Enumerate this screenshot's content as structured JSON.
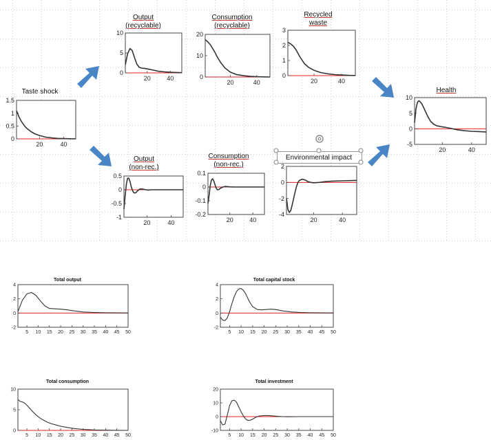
{
  "colors": {
    "line": "#333333",
    "zero": "#e02020",
    "arrow": "#4a86c5",
    "grid": "#cfcfcf"
  },
  "icons": [
    "arrow-icon",
    "rotate-handle-icon",
    "resize-handle-icon"
  ],
  "diagram": {
    "taste_shock": {
      "title": "Taste shock"
    },
    "output_rec": {
      "title1": "Output",
      "title2": "(recyclable)"
    },
    "consumption_rec": {
      "title1": "Consumption",
      "title2": "(recyclable)"
    },
    "recycled_waste": {
      "title1": "Recycled",
      "title2": "waste"
    },
    "health": {
      "title": "Health"
    },
    "output_nonrec": {
      "title1": "Output",
      "title2": "(non-rec.)"
    },
    "consumption_nonrec": {
      "title1": "Consumption",
      "title2": "(non-rec.)"
    },
    "env_impact": {
      "title": "Environmental impact"
    }
  },
  "chart_data": [
    {
      "id": "taste_shock",
      "type": "line",
      "title": "Taste shock",
      "xlim": [
        1,
        50
      ],
      "ylim": [
        0,
        1.5
      ],
      "xticks": [
        20,
        40
      ],
      "yticks": [
        0,
        0.5,
        1,
        1.5
      ],
      "ytick_labels": [
        "0",
        "0.5",
        "1",
        "1.5"
      ],
      "x": [
        1,
        3,
        5,
        8,
        10,
        13,
        16,
        20,
        25,
        30,
        35,
        40,
        45,
        50
      ],
      "y": [
        1.1,
        0.86,
        0.68,
        0.48,
        0.39,
        0.28,
        0.2,
        0.13,
        0.07,
        0.04,
        0.02,
        0.01,
        0.005,
        0.0
      ]
    },
    {
      "id": "output_rec",
      "type": "line",
      "title": "Output (recyclable)",
      "xlim": [
        1,
        50
      ],
      "ylim": [
        0,
        10
      ],
      "xticks": [
        20,
        40
      ],
      "yticks": [
        0,
        5,
        10
      ],
      "ytick_labels": [
        "0",
        "5",
        "10"
      ],
      "x": [
        1,
        3,
        5,
        7,
        9,
        11,
        13,
        15,
        18,
        20,
        25,
        30,
        35,
        40,
        50
      ],
      "y": [
        2.0,
        4.8,
        6.1,
        5.6,
        3.8,
        2.2,
        1.4,
        1.2,
        1.1,
        1.0,
        0.7,
        0.4,
        0.25,
        0.15,
        0.05
      ]
    },
    {
      "id": "consumption_rec",
      "type": "line",
      "title": "Consumption (recyclable)",
      "xlim": [
        1,
        50
      ],
      "ylim": [
        0,
        20
      ],
      "xticks": [
        20,
        40
      ],
      "yticks": [
        0,
        10,
        20
      ],
      "ytick_labels": [
        "0",
        "10",
        "20"
      ],
      "x": [
        1,
        3,
        5,
        8,
        10,
        13,
        16,
        20,
        25,
        30,
        35,
        40,
        45,
        50
      ],
      "y": [
        17.5,
        16.5,
        15,
        12,
        9.5,
        6.5,
        4.2,
        2.3,
        1.1,
        0.6,
        0.3,
        0.15,
        0.05,
        0.0
      ]
    },
    {
      "id": "recycled_waste",
      "type": "line",
      "title": "Recycled waste",
      "xlim": [
        1,
        50
      ],
      "ylim": [
        0,
        3
      ],
      "xticks": [
        20,
        40
      ],
      "yticks": [
        0,
        1,
        2,
        3
      ],
      "ytick_labels": [
        "0",
        "1",
        "2",
        "3"
      ],
      "x": [
        1,
        3,
        5,
        7,
        10,
        13,
        16,
        20,
        25,
        30,
        35,
        40,
        45,
        50
      ],
      "y": [
        2.2,
        2.1,
        1.95,
        1.7,
        1.2,
        0.8,
        0.55,
        0.35,
        0.2,
        0.12,
        0.07,
        0.04,
        0.02,
        0.01
      ]
    },
    {
      "id": "health",
      "type": "line",
      "title": "Health",
      "xlim": [
        1,
        50
      ],
      "ylim": [
        -5,
        10
      ],
      "xticks": [
        20,
        40
      ],
      "yticks": [
        -5,
        0,
        5,
        10
      ],
      "ytick_labels": [
        "-5",
        "0",
        "5",
        "10"
      ],
      "x": [
        1,
        2,
        3,
        4,
        5,
        6,
        8,
        10,
        12,
        14,
        16,
        18,
        20,
        22,
        25,
        30,
        35,
        40,
        45,
        50
      ],
      "y": [
        2,
        6.5,
        8.5,
        9.0,
        8.6,
        8.0,
        6.0,
        4.0,
        2.4,
        1.5,
        1.0,
        0.8,
        0.6,
        0.5,
        0.2,
        -0.3,
        -0.6,
        -0.8,
        -0.9,
        -1.0
      ]
    },
    {
      "id": "output_nonrec",
      "type": "line",
      "title": "Output (non-rec.)",
      "xlim": [
        1,
        50
      ],
      "ylim": [
        -1,
        0.5
      ],
      "xticks": [
        20,
        40
      ],
      "yticks": [
        -1,
        -0.5,
        0,
        0.5
      ],
      "ytick_labels": [
        "-1",
        "-0.5",
        "0",
        "0.5"
      ],
      "x": [
        1,
        2,
        3,
        4,
        5,
        6,
        7,
        8,
        9,
        10,
        11,
        12,
        13,
        14,
        15,
        17,
        19,
        21,
        24,
        30,
        40,
        50
      ],
      "y": [
        -0.7,
        -0.2,
        0.2,
        0.42,
        0.42,
        0.3,
        0.12,
        -0.02,
        -0.1,
        -0.12,
        -0.1,
        -0.05,
        -0.01,
        0.02,
        0.03,
        0.02,
        0.0,
        -0.01,
        0.0,
        0.0,
        0.0,
        0.0
      ]
    },
    {
      "id": "consumption_nonrec",
      "type": "line",
      "title": "Consumption (non-rec.)",
      "xlim": [
        1,
        50
      ],
      "ylim": [
        -0.2,
        0.1
      ],
      "xticks": [
        20,
        40
      ],
      "yticks": [
        -0.2,
        -0.1,
        0,
        0.1
      ],
      "ytick_labels": [
        "-0.2",
        "-0.1",
        "0",
        "0.1"
      ],
      "x": [
        1,
        2,
        3,
        4,
        5,
        6,
        7,
        8,
        9,
        10,
        11,
        12,
        14,
        16,
        18,
        20,
        24,
        30,
        40,
        50
      ],
      "y": [
        -0.12,
        -0.06,
        0.01,
        0.05,
        0.06,
        0.045,
        0.02,
        -0.005,
        -0.02,
        -0.02,
        -0.015,
        -0.008,
        0.0,
        0.004,
        0.003,
        0.001,
        0.0,
        0.0,
        0.0,
        0.0
      ]
    },
    {
      "id": "env_impact",
      "type": "line",
      "title": "Environmental impact",
      "xlim": [
        1,
        50
      ],
      "ylim": [
        -4,
        2
      ],
      "xticks": [
        20,
        40
      ],
      "yticks": [
        -4,
        -2,
        0,
        2
      ],
      "ytick_labels": [
        "-4",
        "-2",
        "0",
        "2"
      ],
      "x": [
        1,
        2,
        3,
        4,
        5,
        6,
        7,
        8,
        9,
        10,
        12,
        14,
        16,
        18,
        20,
        24,
        28,
        32,
        40,
        50
      ],
      "y": [
        -2.0,
        -3.4,
        -3.75,
        -3.5,
        -2.8,
        -2.0,
        -1.2,
        -0.5,
        0.0,
        0.25,
        0.4,
        0.3,
        0.1,
        0.0,
        -0.05,
        0.0,
        0.1,
        0.15,
        0.2,
        0.25
      ]
    },
    {
      "id": "total_output",
      "type": "line",
      "title": "Total output",
      "xlim": [
        1,
        50
      ],
      "ylim": [
        -2,
        4
      ],
      "xticks": [
        5,
        10,
        15,
        20,
        25,
        30,
        35,
        40,
        45,
        50
      ],
      "yticks": [
        -2,
        0,
        2,
        4
      ],
      "ytick_labels": [
        "-2",
        "0",
        "2",
        "4"
      ],
      "x": [
        1,
        3,
        5,
        7,
        9,
        11,
        13,
        15,
        17,
        20,
        23,
        26,
        30,
        35,
        40,
        45,
        50
      ],
      "y": [
        0.2,
        1.8,
        2.7,
        2.9,
        2.5,
        1.7,
        1.0,
        0.65,
        0.6,
        0.55,
        0.45,
        0.3,
        0.15,
        0.08,
        0.04,
        0.02,
        0.01
      ]
    },
    {
      "id": "total_capital_stock",
      "type": "line",
      "title": "Total capital stock",
      "xlim": [
        1,
        50
      ],
      "ylim": [
        -2,
        4
      ],
      "xticks": [
        5,
        10,
        15,
        20,
        25,
        30,
        35,
        40,
        45,
        50
      ],
      "yticks": [
        -2,
        0,
        2,
        4
      ],
      "ytick_labels": [
        "-2",
        "0",
        "2",
        "4"
      ],
      "x": [
        1,
        2,
        3,
        4,
        5,
        6,
        7,
        8,
        9,
        10,
        11,
        12,
        13,
        14,
        15,
        17,
        19,
        21,
        23,
        25,
        28,
        32,
        36,
        40,
        45,
        50
      ],
      "y": [
        -0.6,
        -1.0,
        -1.05,
        -0.7,
        0.2,
        1.3,
        2.3,
        3.0,
        3.4,
        3.45,
        3.2,
        2.7,
        2.0,
        1.4,
        0.9,
        0.5,
        0.45,
        0.5,
        0.55,
        0.5,
        0.3,
        0.15,
        0.08,
        0.04,
        0.02,
        0.01
      ]
    },
    {
      "id": "total_consumption",
      "type": "line",
      "title": "Total consumption",
      "xlim": [
        1,
        50
      ],
      "ylim": [
        0,
        10
      ],
      "xticks": [
        5,
        10,
        15,
        20,
        25,
        30,
        35,
        40,
        45,
        50
      ],
      "yticks": [
        0,
        5,
        10
      ],
      "ytick_labels": [
        "0",
        "5",
        "10"
      ],
      "x": [
        1,
        2,
        3,
        4,
        5,
        6,
        8,
        10,
        12,
        14,
        16,
        18,
        20,
        23,
        26,
        30,
        35,
        40,
        45,
        50
      ],
      "y": [
        7.5,
        7.0,
        6.9,
        6.6,
        6.1,
        5.5,
        4.3,
        3.3,
        2.6,
        2.0,
        1.6,
        1.3,
        1.0,
        0.7,
        0.45,
        0.25,
        0.1,
        0.05,
        0.02,
        0.0
      ]
    },
    {
      "id": "total_investment",
      "type": "line",
      "title": "Total investment",
      "xlim": [
        1,
        50
      ],
      "ylim": [
        -10,
        20
      ],
      "xticks": [
        5,
        10,
        15,
        20,
        25,
        30,
        35,
        40,
        45,
        50
      ],
      "yticks": [
        -10,
        0,
        10,
        20
      ],
      "ytick_labels": [
        "-10",
        "0",
        "10",
        "20"
      ],
      "x": [
        1,
        2,
        3,
        4,
        5,
        6,
        7,
        8,
        9,
        10,
        11,
        12,
        13,
        14,
        15,
        16,
        17,
        18,
        20,
        22,
        24,
        26,
        28,
        30,
        35,
        40,
        45,
        50
      ],
      "y": [
        -3.0,
        -6.0,
        -5.5,
        1.0,
        8.0,
        11.5,
        12.0,
        10.5,
        7.0,
        3.5,
        0.5,
        -1.8,
        -2.8,
        -2.6,
        -1.8,
        -0.8,
        0.0,
        0.5,
        0.8,
        0.8,
        0.5,
        0.2,
        0.0,
        -0.1,
        0.0,
        0.0,
        0.0,
        0.0
      ]
    }
  ]
}
